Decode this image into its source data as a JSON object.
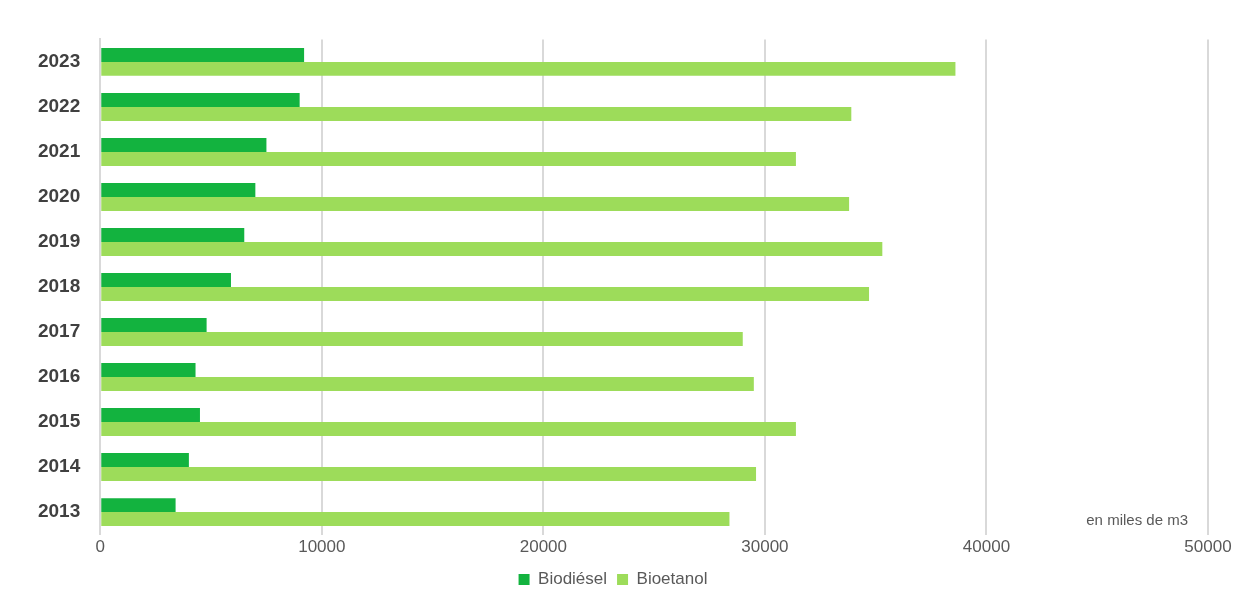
{
  "chart_data": {
    "type": "bar",
    "orientation": "horizontal",
    "categories": [
      "2023",
      "2022",
      "2021",
      "2020",
      "2019",
      "2018",
      "2017",
      "2016",
      "2015",
      "2014",
      "2013"
    ],
    "series": [
      {
        "name": "Biodiésel",
        "color": "#13b33f",
        "values": [
          9200,
          9000,
          7500,
          7000,
          6500,
          5900,
          4800,
          4300,
          4500,
          4000,
          3400
        ]
      },
      {
        "name": "Bioetanol",
        "color": "#9ddc5a",
        "values": [
          38600,
          33900,
          31400,
          33800,
          35300,
          34700,
          29000,
          29500,
          31400,
          29600,
          28400
        ]
      }
    ],
    "xlim": [
      0,
      50000
    ],
    "xticks": [
      0,
      10000,
      20000,
      30000,
      40000,
      50000
    ],
    "grid": "x",
    "legend": "bottom",
    "annotations": [
      "en miles de m3"
    ]
  }
}
